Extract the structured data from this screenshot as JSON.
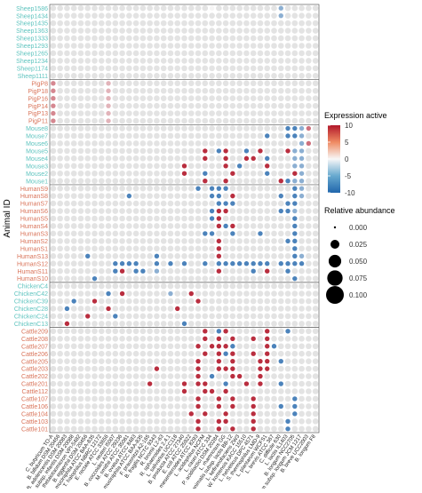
{
  "chart_data": {
    "type": "heatmap",
    "title": "",
    "ylabel": "Animal ID",
    "xlabel": "",
    "group_colors": {
      "Sheep": "#5fc4bf",
      "Pig": "#d9745a",
      "Mouse": "#5fc4bf",
      "Human": "#d9745a",
      "Chicken": "#5fc4bf",
      "Cattle": "#d9745a"
    },
    "groups": [
      {
        "name": "Sheep",
        "rows": [
          "Sheep1586",
          "Sheep1434",
          "Sheep1435",
          "Sheep1363",
          "Sheep1333",
          "Sheep1293",
          "Sheep1265",
          "Sheep1234",
          "Sheep1174",
          "Sheep1111"
        ]
      },
      {
        "name": "Pig",
        "rows": [
          "PigP8",
          "PigP18",
          "PigP16",
          "PigP14",
          "PigP13",
          "PigP11"
        ]
      },
      {
        "name": "Mouse",
        "rows": [
          "Mouse8",
          "Mouse7",
          "Mouse6",
          "Mouse5",
          "Mouse4",
          "Mouse3",
          "Mouse2",
          "Mouse1"
        ]
      },
      {
        "name": "Human",
        "rows": [
          "HumanS9",
          "HumanS8",
          "HumanS7",
          "HumanS6",
          "HumanS5",
          "HumanS4",
          "HumanS3",
          "HumanS2",
          "HumanS1",
          "HumanS13",
          "HumanS12",
          "HumanS11",
          "HumanS10"
        ]
      },
      {
        "name": "Chicken",
        "rows": [
          "ChickenC4",
          "ChickenC42",
          "ChickenC39",
          "ChickenC28",
          "ChickenC24",
          "ChickenC13"
        ]
      },
      {
        "name": "Cattle",
        "rows": [
          "Cattle209",
          "Cattle208",
          "Cattle207",
          "Cattle206",
          "Cattle205",
          "Cattle203",
          "Cattle202",
          "Cattle201",
          "Cattle112",
          "Cattle107",
          "Cattle106",
          "Cattle104",
          "Cattle103",
          "Cattle101"
        ]
      }
    ],
    "species": [
      "C. butyricum TO-A",
      "B. bifidum DSM 20456",
      "B. adolescentis DSM 20083",
      "B. longum subsp. infantis DSM 20088",
      "B. thetaiotaomicron VPI-5482",
      "B. eggerthii DSM 20456",
      "A. muciniphila ATCC BAA-835",
      "T. halophilus NBRC 12172",
      "E. rectale ATCC 33656",
      "L. reuteri I5007",
      "B. coccoides ATCC 29236",
      "M. smithii ATCC 35061",
      "B. ovatus ATCC 8483",
      "A. muciniphila ATCC BAA-835",
      "F. prausnitzii A2-165",
      "B. fragilis NCTC 9343",
      "R. bromii L2-63",
      "R. sphaeroides 2.4.1",
      "L. salivarius UCC118",
      "B. producta ATCC 27340",
      "E. coli ATCC 25922",
      "L. mesenteroides ATCC 8293",
      "L. acidophilus NCFM",
      "L. casei ATCC 334",
      "P. acidilactici DSM 20284",
      "L. rhamnosus GG",
      "B. animalis subsp. lactis BB-12",
      "L. kefiranofaciens ZW3",
      "W. koreensis KACC 15510",
      "L. helveticus DPC 4571",
      "S. thermophilus LMD-9",
      "L. plantarum WCFS1",
      "L. brevis ATCC 367",
      "C. difficile 630",
      "L. lactis IL1403",
      "B. longum NCC2705",
      "B. longum subsp. longum JCM 1217",
      "B. breve UCC2003",
      "B. longum F8"
    ],
    "expression_active": {
      "Sheep1586": {
        "23": 0.1,
        "33": -5
      },
      "Sheep1434": {
        "33": -5
      },
      "Pig": {
        "0": 5,
        "8": 3
      },
      "Mouse8": {
        "34": -8,
        "35": -8,
        "36": -5,
        "37": 6
      },
      "Mouse7": {
        "31": -8,
        "34": -8,
        "35": -8,
        "36": -5
      },
      "Mouse6": {
        "36": -5,
        "37": 6
      },
      "Mouse5": {
        "22": 9,
        "24": -8,
        "25": 9,
        "28": -8,
        "30": 9,
        "34": 9,
        "35": -5,
        "36": -5
      },
      "Mouse4": {
        "22": 9,
        "25": 9,
        "28": 9,
        "29": 9,
        "31": -8,
        "35": -5,
        "36": -5
      },
      "Mouse3": {
        "19": 9,
        "25": 9,
        "27": -8,
        "31": 9,
        "35": -5,
        "36": -5
      },
      "Mouse2": {
        "19": 9,
        "22": -8,
        "26": 9,
        "31": -8,
        "35": 9,
        "36": -5
      },
      "Mouse1": {
        "22": 9,
        "25": 9,
        "33": 9,
        "34": -8,
        "35": -5,
        "36": -5
      },
      "HumanS9": {
        "21": -8,
        "23": -8,
        "24": -8,
        "25": -8,
        "35": -8,
        "36": -5
      },
      "HumanS8": {
        "11": -8,
        "23": -8,
        "24": -8,
        "26": 9,
        "33": -8,
        "35": -8,
        "36": -5
      },
      "HumanS7": {
        "24": -8,
        "25": -8,
        "26": -8,
        "34": -8,
        "35": -8
      },
      "HumanS6": {
        "23": -8,
        "24": 9,
        "25": 9,
        "33": -8,
        "34": -8,
        "35": -5
      },
      "HumanS5": {
        "23": -8,
        "24": 9,
        "35": -8
      },
      "HumanS4": {
        "24": 9,
        "25": -8,
        "26": 9,
        "35": -8
      },
      "HumanS3": {
        "22": -8,
        "23": -8,
        "26": -8,
        "30": -8,
        "35": -8
      },
      "HumanS2": {
        "24": 9,
        "34": -8,
        "35": -8
      },
      "HumanS1": {
        "24": 9,
        "35": -8
      },
      "HumanS13": {
        "5": -8,
        "15": -8,
        "24": 9,
        "35": -8,
        "36": -5
      },
      "HumanS12": {
        "9": -8,
        "10": -8,
        "11": -8,
        "12": -8,
        "15": -8,
        "17": -8,
        "19": -8,
        "22": -8,
        "24": -8,
        "25": -8,
        "26": -8,
        "27": -8,
        "28": -8,
        "29": -8,
        "30": -8,
        "31": -8,
        "33": -8,
        "34": -8,
        "35": -8,
        "36": -8
      },
      "HumanS11": {
        "9": -8,
        "10": 9,
        "12": -8,
        "13": -8,
        "15": -5,
        "24": 9,
        "29": -8,
        "31": 9,
        "34": -8
      },
      "HumanS10": {
        "6": -8,
        "35": -8
      },
      "ChickenC42": {
        "8": -8,
        "10": 9,
        "17": -5,
        "20": 9
      },
      "ChickenC39": {
        "3": -8,
        "6": 9,
        "21": 9
      },
      "ChickenC28": {
        "2": -8,
        "8": 9,
        "18": 9
      },
      "ChickenC24": {
        "5": 9,
        "9": -8
      },
      "ChickenC13": {
        "2": 9,
        "19": -8
      },
      "Cattle209": {
        "22": 9,
        "24": -8,
        "25": 9,
        "31": 9,
        "34": -8
      },
      "Cattle208": {
        "22": 9,
        "24": 9,
        "26": 9,
        "29": 9,
        "31": 9
      },
      "Cattle207": {
        "21": 9,
        "23": 9,
        "24": 9,
        "25": 9,
        "26": -8,
        "31": 9,
        "32": -8
      },
      "Cattle206": {
        "22": 9,
        "24": 9,
        "25": -8,
        "26": 9,
        "29": 9,
        "31": 9
      },
      "Cattle205": {
        "21": 9,
        "24": 9,
        "26": 9,
        "30": 9,
        "31": 9,
        "33": -8
      },
      "Cattle203": {
        "15": 9,
        "21": 9,
        "24": 9,
        "25": 9,
        "26": 9,
        "30": 9,
        "31": 9
      },
      "Cattle202": {
        "21": 9,
        "23": -8,
        "26": 9,
        "27": 9,
        "30": 9
      },
      "Cattle201": {
        "14": 9,
        "19": 9,
        "21": 9,
        "22": 9,
        "25": -8,
        "28": 9,
        "30": 9,
        "33": -8
      },
      "Cattle112": {
        "19": 9,
        "22": 9,
        "23": 9,
        "25": 9
      },
      "Cattle107": {
        "21": 9,
        "24": 9,
        "26": 9,
        "29": 9,
        "35": -8
      },
      "Cattle106": {
        "21": 9,
        "24": 9,
        "26": 9,
        "29": 9,
        "33": -8,
        "35": -8
      },
      "Cattle104": {
        "20": 9,
        "22": 9,
        "25": 9,
        "29": 9,
        "35": -8
      },
      "Cattle103": {
        "21": 9,
        "24": 9,
        "25": 9,
        "29": 9,
        "34": -8
      },
      "Cattle101": {
        "21": 9,
        "24": 9,
        "26": 9,
        "29": 9,
        "34": -8
      }
    },
    "legend": {
      "color_title": "Expression active",
      "color_ticks": [
        10,
        5,
        0,
        -5,
        -10
      ],
      "color_range": [
        -10,
        10
      ],
      "size_title": "Relative abundance",
      "size_ticks": [
        "0.000",
        "0.025",
        "0.050",
        "0.075",
        "0.100"
      ],
      "size_values": [
        0.0,
        0.025,
        0.05,
        0.075,
        0.1
      ]
    },
    "colors": {
      "positive": "#b2182b",
      "neutral": "#f7f7f7",
      "negative": "#2166ac",
      "empty_dot": "#e3e3e3"
    }
  }
}
